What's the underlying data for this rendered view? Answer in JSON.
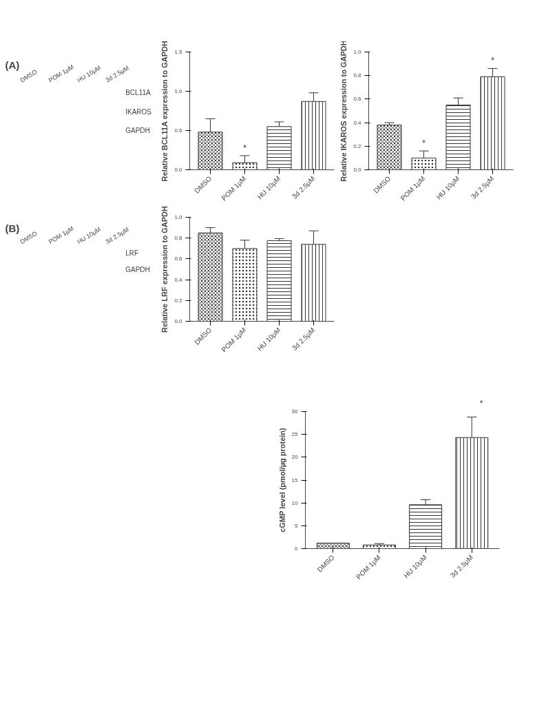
{
  "chart_data": [
    {
      "type": "other",
      "title": "(A)",
      "categories": [
        "DMSO",
        "POM 1µM",
        "HU 10µM",
        "3d 2.5µM"
      ],
      "annotations": [
        "BCL11A",
        "IKAROS",
        "GAPDH"
      ]
    },
    {
      "type": "bar",
      "ylabel": "Relative BCL11A expression to GAPDH",
      "categories": [
        "DMSO",
        "POM 1µM",
        "HU 10µM",
        "3d 2.5µM"
      ],
      "values": [
        0.48,
        0.09,
        0.55,
        0.87
      ],
      "errors": [
        0.17,
        0.09,
        0.06,
        0.11
      ],
      "color": "#333333",
      "ylim": [
        0,
        1.5
      ],
      "yticks": [
        {
          "value": 0,
          "label": "0.0"
        },
        {
          "value": 0.5,
          "label": "0.5"
        },
        {
          "value": 1,
          "label": "1.0"
        },
        {
          "value": 1.5,
          "label": "1.5"
        }
      ],
      "annotations": [
        {
          "text": "*",
          "x": "POM 1µM",
          "y": 0.18
        }
      ]
    },
    {
      "type": "bar",
      "ylabel": "Relative IKAROS expression to GAPDH",
      "categories": [
        "DMSO",
        "POM 1µM",
        "HU 10µM",
        "3d 2.5µM"
      ],
      "values": [
        0.38,
        0.1,
        0.55,
        0.79
      ],
      "errors": [
        0.02,
        0.06,
        0.06,
        0.07
      ],
      "color": "#333333",
      "ylim": [
        0,
        1
      ],
      "yticks": [
        {
          "value": 0,
          "label": "0.0"
        },
        {
          "value": 0.2,
          "label": "0.2"
        },
        {
          "value": 0.4,
          "label": "0.4"
        },
        {
          "value": 0.6,
          "label": "0.6"
        },
        {
          "value": 0.8,
          "label": "0.8"
        },
        {
          "value": 1,
          "label": "1.0"
        }
      ],
      "annotations": [
        {
          "text": "*",
          "x": "POM 1µM",
          "y": 0.16
        },
        {
          "text": "*",
          "x": "3d 2.5µM",
          "y": 0.86
        }
      ]
    },
    {
      "type": "other",
      "title": "(B)",
      "categories": [
        "DMSO",
        "POM 1µM",
        "HU 10µM",
        "3d 2.5µM"
      ],
      "annotations": [
        "LRF",
        "GAPDH"
      ]
    },
    {
      "type": "bar",
      "ylabel": "Relative LRF expression to GAPDH",
      "categories": [
        "DMSO",
        "POM 1µM",
        "HU 10µM",
        "3d 2.5µM"
      ],
      "values": [
        0.85,
        0.7,
        0.775,
        0.74
      ],
      "errors": [
        0.05,
        0.08,
        0.02,
        0.13
      ],
      "color": "#333333",
      "ylim": [
        0,
        1
      ],
      "yticks": [
        {
          "value": 0,
          "label": "0.0"
        },
        {
          "value": 0.2,
          "label": "0.2"
        },
        {
          "value": 0.4,
          "label": "0.4"
        },
        {
          "value": 0.6,
          "label": "0.6"
        },
        {
          "value": 0.8,
          "label": "0.8"
        },
        {
          "value": 1,
          "label": "1.0"
        }
      ]
    },
    {
      "type": "bar",
      "ylabel": "cGMP level (pmol/µg protein)",
      "categories": [
        "DMSO",
        "POM 1µM",
        "HU 10µM",
        "3d 2.5µM"
      ],
      "values": [
        1.2,
        0.8,
        9.6,
        24.3
      ],
      "errors": [
        null,
        0.3,
        1.1,
        4.5
      ],
      "color": "#333333",
      "ylim": [
        0,
        30
      ],
      "yticks": [
        0,
        5,
        10,
        15,
        20,
        25,
        30
      ],
      "annotations": [
        "*"
      ]
    }
  ]
}
